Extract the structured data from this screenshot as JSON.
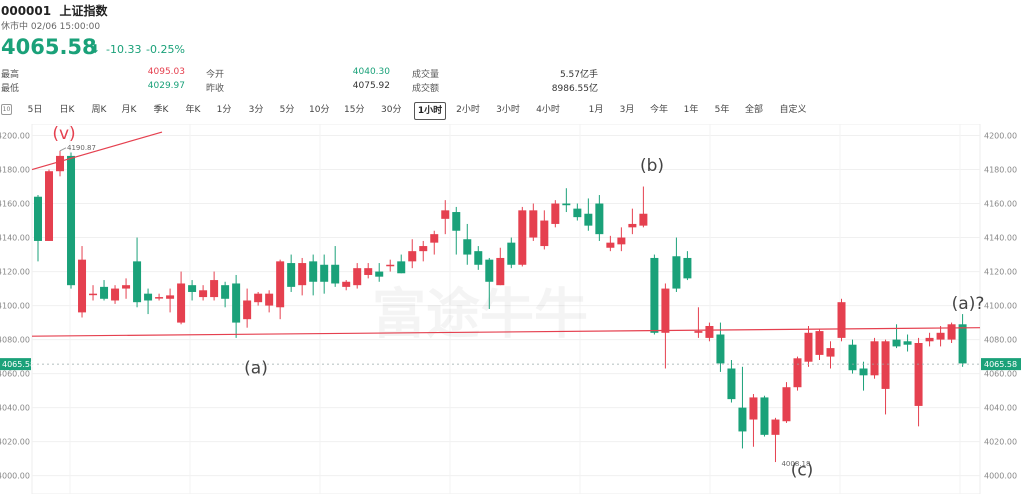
{
  "header": {
    "code": "000001",
    "name": "上证指数",
    "status": "休市中 02/06 15:00:00",
    "price": "4065.58",
    "change": "-10.33",
    "change_pct": "-0.25%"
  },
  "stats": [
    {
      "label": "最高",
      "value": "4095.03",
      "color": "#e5404f"
    },
    {
      "label": "今开",
      "value": "4040.30",
      "color": "#1aa179"
    },
    {
      "label": "成交量",
      "value": "5.57亿手",
      "color": "#333333"
    },
    {
      "label": "最低",
      "value": "4029.97",
      "color": "#1aa179"
    },
    {
      "label": "昨收",
      "value": "4075.92",
      "color": "#333333"
    },
    {
      "label": "成交额",
      "value": "8986.55亿",
      "color": "#333333"
    }
  ],
  "periods": [
    "5日",
    "日K",
    "周K",
    "月K",
    "季K",
    "年K",
    "1分",
    "3分",
    "5分",
    "10分",
    "15分",
    "30分",
    "1小时",
    "2小时",
    "3小时",
    "4小时",
    "1月",
    "3月",
    "今年",
    "1年",
    "5年",
    "全部",
    "自定义"
  ],
  "active_period": "1小时",
  "colors": {
    "up": "#e5404f",
    "down": "#1aa179",
    "annotation": "#e5404f"
  },
  "watermark": "富途牛牛",
  "chart_data": {
    "type": "candlestick",
    "ylim": [
      4000,
      4205
    ],
    "yticks": [
      4000,
      4020,
      4040,
      4060,
      4080,
      4100,
      4120,
      4140,
      4160,
      4180,
      4200
    ],
    "ytick_labels": [
      "4000.00",
      "4020.00",
      "4040.00",
      "4060.00",
      "4080.00",
      "4100.00",
      "4120.00",
      "4140.00",
      "4160.00",
      "4180.00",
      "4200.00"
    ],
    "current_price": "4065.58",
    "high_label": "4190.87",
    "low_label": "4008.18",
    "candles": [
      [
        4138,
        4164,
        4126,
        4165,
        "down"
      ],
      [
        4138,
        4179,
        4138,
        4180,
        "up"
      ],
      [
        4179,
        4188,
        4176,
        4191,
        "up"
      ],
      [
        4112,
        4188,
        4110,
        4190,
        "down"
      ],
      [
        4096,
        4127,
        4093,
        4135,
        "up"
      ],
      [
        4107,
        4107,
        4103,
        4112,
        "up"
      ],
      [
        4104,
        4111,
        4103,
        4115,
        "down"
      ],
      [
        4103,
        4110,
        4101,
        4112,
        "up"
      ],
      [
        4110,
        4112,
        4104,
        4116,
        "up"
      ],
      [
        4102,
        4126,
        4099,
        4140,
        "down"
      ],
      [
        4103,
        4107,
        4095,
        4110,
        "down"
      ],
      [
        4105,
        4105,
        4103,
        4107,
        "up"
      ],
      [
        4104,
        4106,
        4096,
        4110,
        "up"
      ],
      [
        4090,
        4113,
        4089,
        4120,
        "up"
      ],
      [
        4108,
        4112,
        4103,
        4115,
        "down"
      ],
      [
        4105,
        4109,
        4103,
        4112,
        "up"
      ],
      [
        4105,
        4115,
        4103,
        4120,
        "up"
      ],
      [
        4112,
        4104,
        4099,
        4114,
        "down"
      ],
      [
        4090,
        4113,
        4081,
        4118,
        "down"
      ],
      [
        4092,
        4103,
        4087,
        4110,
        "up"
      ],
      [
        4102,
        4107,
        4100,
        4108,
        "up"
      ],
      [
        4107,
        4100,
        4096,
        4109,
        "up"
      ],
      [
        4099,
        4126,
        4092,
        4127,
        "up"
      ],
      [
        4125,
        4111,
        4108,
        4130,
        "down"
      ],
      [
        4125,
        4112,
        4106,
        4128,
        "up"
      ],
      [
        4126,
        4114,
        4106,
        4130,
        "down"
      ],
      [
        4124,
        4114,
        4107,
        4130,
        "down"
      ],
      [
        4113,
        4124,
        4111,
        4135,
        "down"
      ],
      [
        4111,
        4114,
        4109,
        4115,
        "up"
      ],
      [
        4112,
        4122,
        4110,
        4125,
        "up"
      ],
      [
        4122,
        4118,
        4116,
        4125,
        "up"
      ],
      [
        4120,
        4117,
        4114,
        4125,
        "down"
      ],
      [
        4124,
        4124,
        4120,
        4127,
        "up"
      ],
      [
        4119,
        4126,
        4119,
        4130,
        "down"
      ],
      [
        4126,
        4132,
        4122,
        4139,
        "up"
      ],
      [
        4132,
        4135,
        4126,
        4138,
        "up"
      ],
      [
        4137,
        4142,
        4130,
        4144,
        "up"
      ],
      [
        4151,
        4156,
        4142,
        4162,
        "up"
      ],
      [
        4155,
        4144,
        4130,
        4158,
        "down"
      ],
      [
        4139,
        4130,
        4124,
        4148,
        "down"
      ],
      [
        4124,
        4132,
        4121,
        4135,
        "down"
      ],
      [
        4114,
        4127,
        4098,
        4128,
        "down"
      ],
      [
        4112,
        4128,
        4112,
        4134,
        "up"
      ],
      [
        4137,
        4124,
        4122,
        4140,
        "down"
      ],
      [
        4124,
        4156,
        4123,
        4158,
        "up"
      ],
      [
        4156,
        4140,
        4138,
        4160,
        "up"
      ],
      [
        4150,
        4135,
        4133,
        4156,
        "up"
      ],
      [
        4160,
        4148,
        4146,
        4162,
        "up"
      ],
      [
        4160,
        4159,
        4155,
        4169,
        "down"
      ],
      [
        4157,
        4152,
        4150,
        4160,
        "down"
      ],
      [
        4154,
        4147,
        4144,
        4163,
        "down"
      ],
      [
        4142,
        4160,
        4138,
        4165,
        "down"
      ],
      [
        4137,
        4134,
        4132,
        4141,
        "up"
      ],
      [
        4136,
        4140,
        4132,
        4146,
        "up"
      ],
      [
        4146,
        4148,
        4142,
        4157,
        "up"
      ],
      [
        4147,
        4154,
        4146,
        4170,
        "up"
      ],
      [
        4084,
        4128,
        4083,
        4130,
        "down"
      ],
      [
        4084,
        4110,
        4063,
        4113,
        "up"
      ],
      [
        4110,
        4129,
        4108,
        4140,
        "down"
      ],
      [
        4116,
        4128,
        4115,
        4132,
        "down"
      ],
      [
        4084,
        4085,
        4081,
        4099,
        "up"
      ],
      [
        4081,
        4088,
        4079,
        4090,
        "up"
      ],
      [
        4083,
        4066,
        4061,
        4090,
        "down"
      ],
      [
        4063,
        4045,
        4043,
        4068,
        "down"
      ],
      [
        4040,
        4026,
        4016,
        4064,
        "down"
      ],
      [
        4033,
        4046,
        4017,
        4048,
        "up"
      ],
      [
        4046,
        4024,
        4023,
        4047,
        "down"
      ],
      [
        4024,
        4033,
        4008,
        4034,
        "up"
      ],
      [
        4032,
        4052,
        4031,
        4055,
        "up"
      ],
      [
        4052,
        4069,
        4050,
        4070,
        "up"
      ],
      [
        4067,
        4084,
        4064,
        4088,
        "up"
      ],
      [
        4085,
        4071,
        4068,
        4086,
        "up"
      ],
      [
        4070,
        4075,
        4063,
        4079,
        "up"
      ],
      [
        4081,
        4102,
        4079,
        4104,
        "up"
      ],
      [
        4077,
        4062,
        4060,
        4080,
        "down"
      ],
      [
        4063,
        4059,
        4050,
        4067,
        "down"
      ],
      [
        4059,
        4079,
        4057,
        4081,
        "up"
      ],
      [
        4051,
        4079,
        4036,
        4080,
        "up"
      ],
      [
        4076,
        4080,
        4075,
        4089,
        "down"
      ],
      [
        4079,
        4077,
        4073,
        4083,
        "down"
      ],
      [
        4041,
        4078,
        4029,
        4081,
        "up"
      ],
      [
        4079,
        4081,
        4076,
        4084,
        "up"
      ],
      [
        4084,
        4080,
        4076,
        4088,
        "up"
      ],
      [
        4080,
        4089,
        4078,
        4090,
        "up"
      ],
      [
        4089,
        4066,
        4064,
        4095,
        "down"
      ]
    ],
    "annotations": [
      {
        "text": "(v)",
        "value": 4198,
        "index": 1,
        "color": "#e5404f"
      },
      {
        "text": "(a)",
        "value": 4060,
        "index": 17,
        "color": "#444444"
      },
      {
        "text": "(b)",
        "value": 4179,
        "index": 47,
        "color": "#444444"
      },
      {
        "text": "(c)",
        "value": 4000,
        "index": 56,
        "color": "#444444"
      },
      {
        "text": "(a)?",
        "value": 4098,
        "index": 69,
        "color": "#444444"
      }
    ]
  }
}
